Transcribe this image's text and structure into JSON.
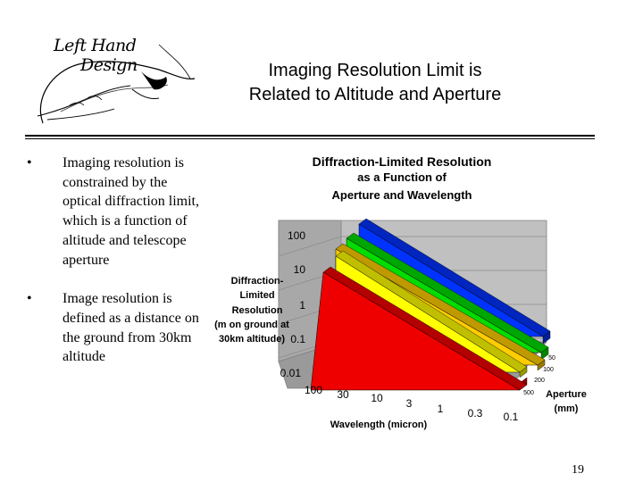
{
  "logo": {
    "line1": "Left Hand",
    "line2": "Design"
  },
  "slide": {
    "title_line1": "Imaging Resolution Limit is",
    "title_line2": "Related to Altitude and Aperture",
    "bullets": [
      "Imaging resolution is constrained by the optical diffraction limit, which is a function of altitude and telescope aperture",
      "Image resolution is defined as a distance on the ground from 30km altitude"
    ],
    "bullet_symbol": "•",
    "page_number": "19"
  },
  "chart_data": {
    "type": "area",
    "title_lines": [
      "Diffraction-Limited Resolution",
      "as a Function of",
      "Aperture and Wavelength"
    ],
    "zlabel_lines": [
      "Diffraction-",
      "Limited",
      "Resolution",
      "(m on ground at",
      "30km altitude)"
    ],
    "z_ticks": [
      "100",
      "10",
      "1",
      "0.1",
      "0.01"
    ],
    "x_ticks": [
      "100",
      "30",
      "10",
      "3",
      "1",
      "0.3",
      "0.1"
    ],
    "xlabel": "Wavelength (micron)",
    "depth_ticks": [
      "50",
      "100",
      "200",
      "500"
    ],
    "depth_label_lines": [
      "Aperture",
      "(mm)"
    ],
    "scale": "log",
    "series_colors": [
      "#ee0000",
      "#ffff00",
      "#ffcc00",
      "#00dd00",
      "#0033ff"
    ]
  }
}
